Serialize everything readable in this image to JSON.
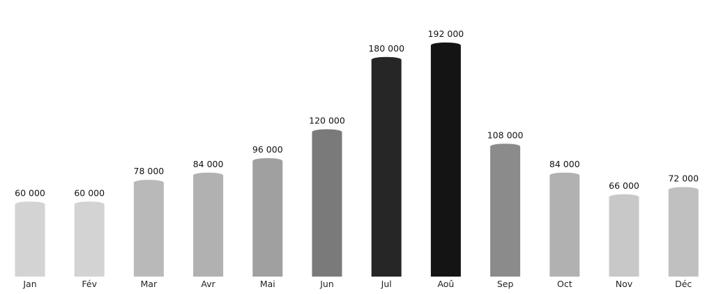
{
  "chart_data": {
    "type": "bar",
    "title": "",
    "xlabel": "",
    "ylabel": "",
    "categories": [
      "Jan",
      "Fév",
      "Mar",
      "Avr",
      "Mai",
      "Jun",
      "Jul",
      "Aoû",
      "Sep",
      "Oct",
      "Nov",
      "Déc"
    ],
    "values": [
      60000,
      60000,
      78000,
      84000,
      96000,
      120000,
      180000,
      192000,
      108000,
      84000,
      66000,
      72000
    ],
    "value_labels": [
      "60 000",
      "60 000",
      "78 000",
      "84 000",
      "96 000",
      "120 000",
      "180 000",
      "192 000",
      "108 000",
      "84 000",
      "66 000",
      "72 000"
    ],
    "ylim": [
      0,
      192000
    ],
    "grid": false,
    "legend": "none",
    "bar_colors": [
      "#d3d3d3",
      "#d3d3d3",
      "#b9b9b9",
      "#b1b1b1",
      "#a0a0a0",
      "#7a7a7a",
      "#262626",
      "#141414",
      "#8b8b8b",
      "#b1b1b1",
      "#c8c8c8",
      "#c0c0c0"
    ]
  }
}
